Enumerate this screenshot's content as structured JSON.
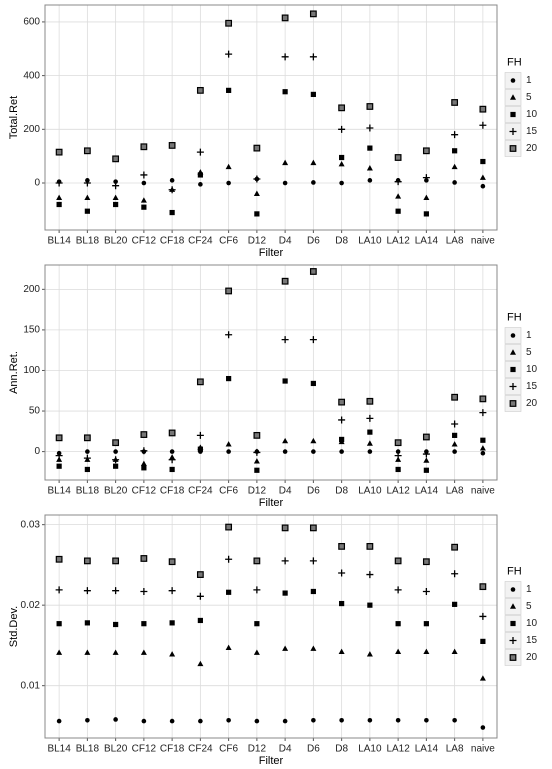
{
  "chart_data": [
    {
      "type": "scatter",
      "y_label": "Total.Ret",
      "x_label": "Filter",
      "legend_title": "FH",
      "categories": [
        "BL14",
        "BL18",
        "BL20",
        "CF12",
        "CF18",
        "CF24",
        "CF6",
        "D12",
        "D4",
        "D6",
        "D8",
        "LA10",
        "LA12",
        "LA14",
        "LA8",
        "naive"
      ],
      "ylim": [
        -175,
        663
      ],
      "yticks": [
        0,
        200,
        400,
        600
      ],
      "grid": true,
      "series": [
        {
          "name": "1",
          "shape": "circle",
          "color": "#000000",
          "values": [
            5,
            10,
            5,
            0,
            10,
            -5,
            0,
            15,
            0,
            2,
            0,
            10,
            10,
            10,
            2,
            -12
          ]
        },
        {
          "name": "5",
          "shape": "triangle",
          "color": "#000000",
          "values": [
            -55,
            -55,
            -55,
            -65,
            -25,
            40,
            60,
            -40,
            75,
            75,
            70,
            55,
            -50,
            -55,
            60,
            20
          ]
        },
        {
          "name": "10",
          "shape": "square",
          "color": "#000000",
          "values": [
            -80,
            -105,
            -80,
            -90,
            -110,
            30,
            345,
            -115,
            340,
            330,
            95,
            130,
            -105,
            -115,
            120,
            80
          ]
        },
        {
          "name": "15",
          "shape": "plus",
          "color": "#000000",
          "values": [
            0,
            0,
            -10,
            30,
            -25,
            115,
            480,
            15,
            470,
            470,
            200,
            205,
            5,
            20,
            180,
            215
          ]
        },
        {
          "name": "20",
          "shape": "boxed-square",
          "color": "#000000",
          "values": [
            115,
            120,
            90,
            135,
            140,
            345,
            595,
            130,
            615,
            630,
            280,
            285,
            95,
            120,
            300,
            275
          ]
        }
      ]
    },
    {
      "type": "scatter",
      "y_label": "Ann.Ret.",
      "x_label": "Filter",
      "legend_title": "FH",
      "categories": [
        "BL14",
        "BL18",
        "BL20",
        "CF12",
        "CF18",
        "CF24",
        "CF6",
        "D12",
        "D4",
        "D6",
        "D8",
        "LA10",
        "LA12",
        "LA14",
        "LA8",
        "naive"
      ],
      "ylim": [
        -35,
        230
      ],
      "yticks": [
        0,
        50,
        100,
        150,
        200
      ],
      "grid": true,
      "series": [
        {
          "name": "1",
          "shape": "circle",
          "color": "#000000",
          "values": [
            -2,
            0,
            0,
            0,
            0,
            0,
            0,
            0,
            0,
            0,
            0,
            0,
            0,
            0,
            0,
            -2
          ]
        },
        {
          "name": "5",
          "shape": "triangle",
          "color": "#000000",
          "values": [
            -10,
            -10,
            -10,
            -15,
            -7,
            5,
            9,
            -12,
            13,
            13,
            12,
            10,
            -10,
            -11,
            9,
            4
          ]
        },
        {
          "name": "10",
          "shape": "square",
          "color": "#000000",
          "values": [
            -18,
            -22,
            -18,
            -20,
            -22,
            3,
            90,
            -23,
            87,
            84,
            15,
            24,
            -22,
            -23,
            20,
            14
          ]
        },
        {
          "name": "15",
          "shape": "plus",
          "color": "#000000",
          "values": [
            -5,
            -8,
            -10,
            1,
            -10,
            20,
            144,
            -1,
            138,
            138,
            39,
            41,
            -5,
            -3,
            34,
            48
          ]
        },
        {
          "name": "20",
          "shape": "boxed-square",
          "color": "#000000",
          "values": [
            17,
            17,
            11,
            21,
            23,
            86,
            198,
            20,
            210,
            222,
            61,
            62,
            11,
            18,
            67,
            65
          ]
        }
      ]
    },
    {
      "type": "scatter",
      "y_label": "Std.Dev.",
      "x_label": "Filter",
      "legend_title": "FH",
      "categories": [
        "BL14",
        "BL18",
        "BL20",
        "CF12",
        "CF18",
        "CF24",
        "CF6",
        "D12",
        "D4",
        "D6",
        "D8",
        "LA10",
        "LA12",
        "LA14",
        "LA8",
        "naive"
      ],
      "ylim": [
        0.0035,
        0.0312
      ],
      "yticks": [
        0.01,
        0.02,
        0.03
      ],
      "grid": true,
      "series": [
        {
          "name": "1",
          "shape": "circle",
          "color": "#000000",
          "values": [
            0.0056,
            0.0057,
            0.0058,
            0.0056,
            0.0056,
            0.0056,
            0.0057,
            0.0056,
            0.0056,
            0.0057,
            0.0057,
            0.0057,
            0.0057,
            0.0057,
            0.0057,
            0.0048
          ]
        },
        {
          "name": "5",
          "shape": "triangle",
          "color": "#000000",
          "values": [
            0.0141,
            0.0141,
            0.0141,
            0.0141,
            0.0139,
            0.0127,
            0.0147,
            0.0141,
            0.0146,
            0.0146,
            0.0142,
            0.0139,
            0.0142,
            0.0142,
            0.0142,
            0.0109
          ]
        },
        {
          "name": "10",
          "shape": "square",
          "color": "#000000",
          "values": [
            0.0177,
            0.0178,
            0.0176,
            0.0177,
            0.0178,
            0.0181,
            0.0216,
            0.0177,
            0.0215,
            0.0217,
            0.0202,
            0.02,
            0.0177,
            0.0177,
            0.0201,
            0.0155
          ]
        },
        {
          "name": "15",
          "shape": "plus",
          "color": "#000000",
          "values": [
            0.0219,
            0.0218,
            0.0218,
            0.0217,
            0.0218,
            0.0211,
            0.0257,
            0.0219,
            0.0255,
            0.0255,
            0.024,
            0.0238,
            0.0219,
            0.0217,
            0.0239,
            0.0186
          ]
        },
        {
          "name": "20",
          "shape": "boxed-square",
          "color": "#000000",
          "values": [
            0.0257,
            0.0255,
            0.0255,
            0.0258,
            0.0254,
            0.0238,
            0.0297,
            0.0255,
            0.0296,
            0.0296,
            0.0273,
            0.0273,
            0.0255,
            0.0254,
            0.0272,
            0.0223
          ]
        }
      ]
    }
  ]
}
